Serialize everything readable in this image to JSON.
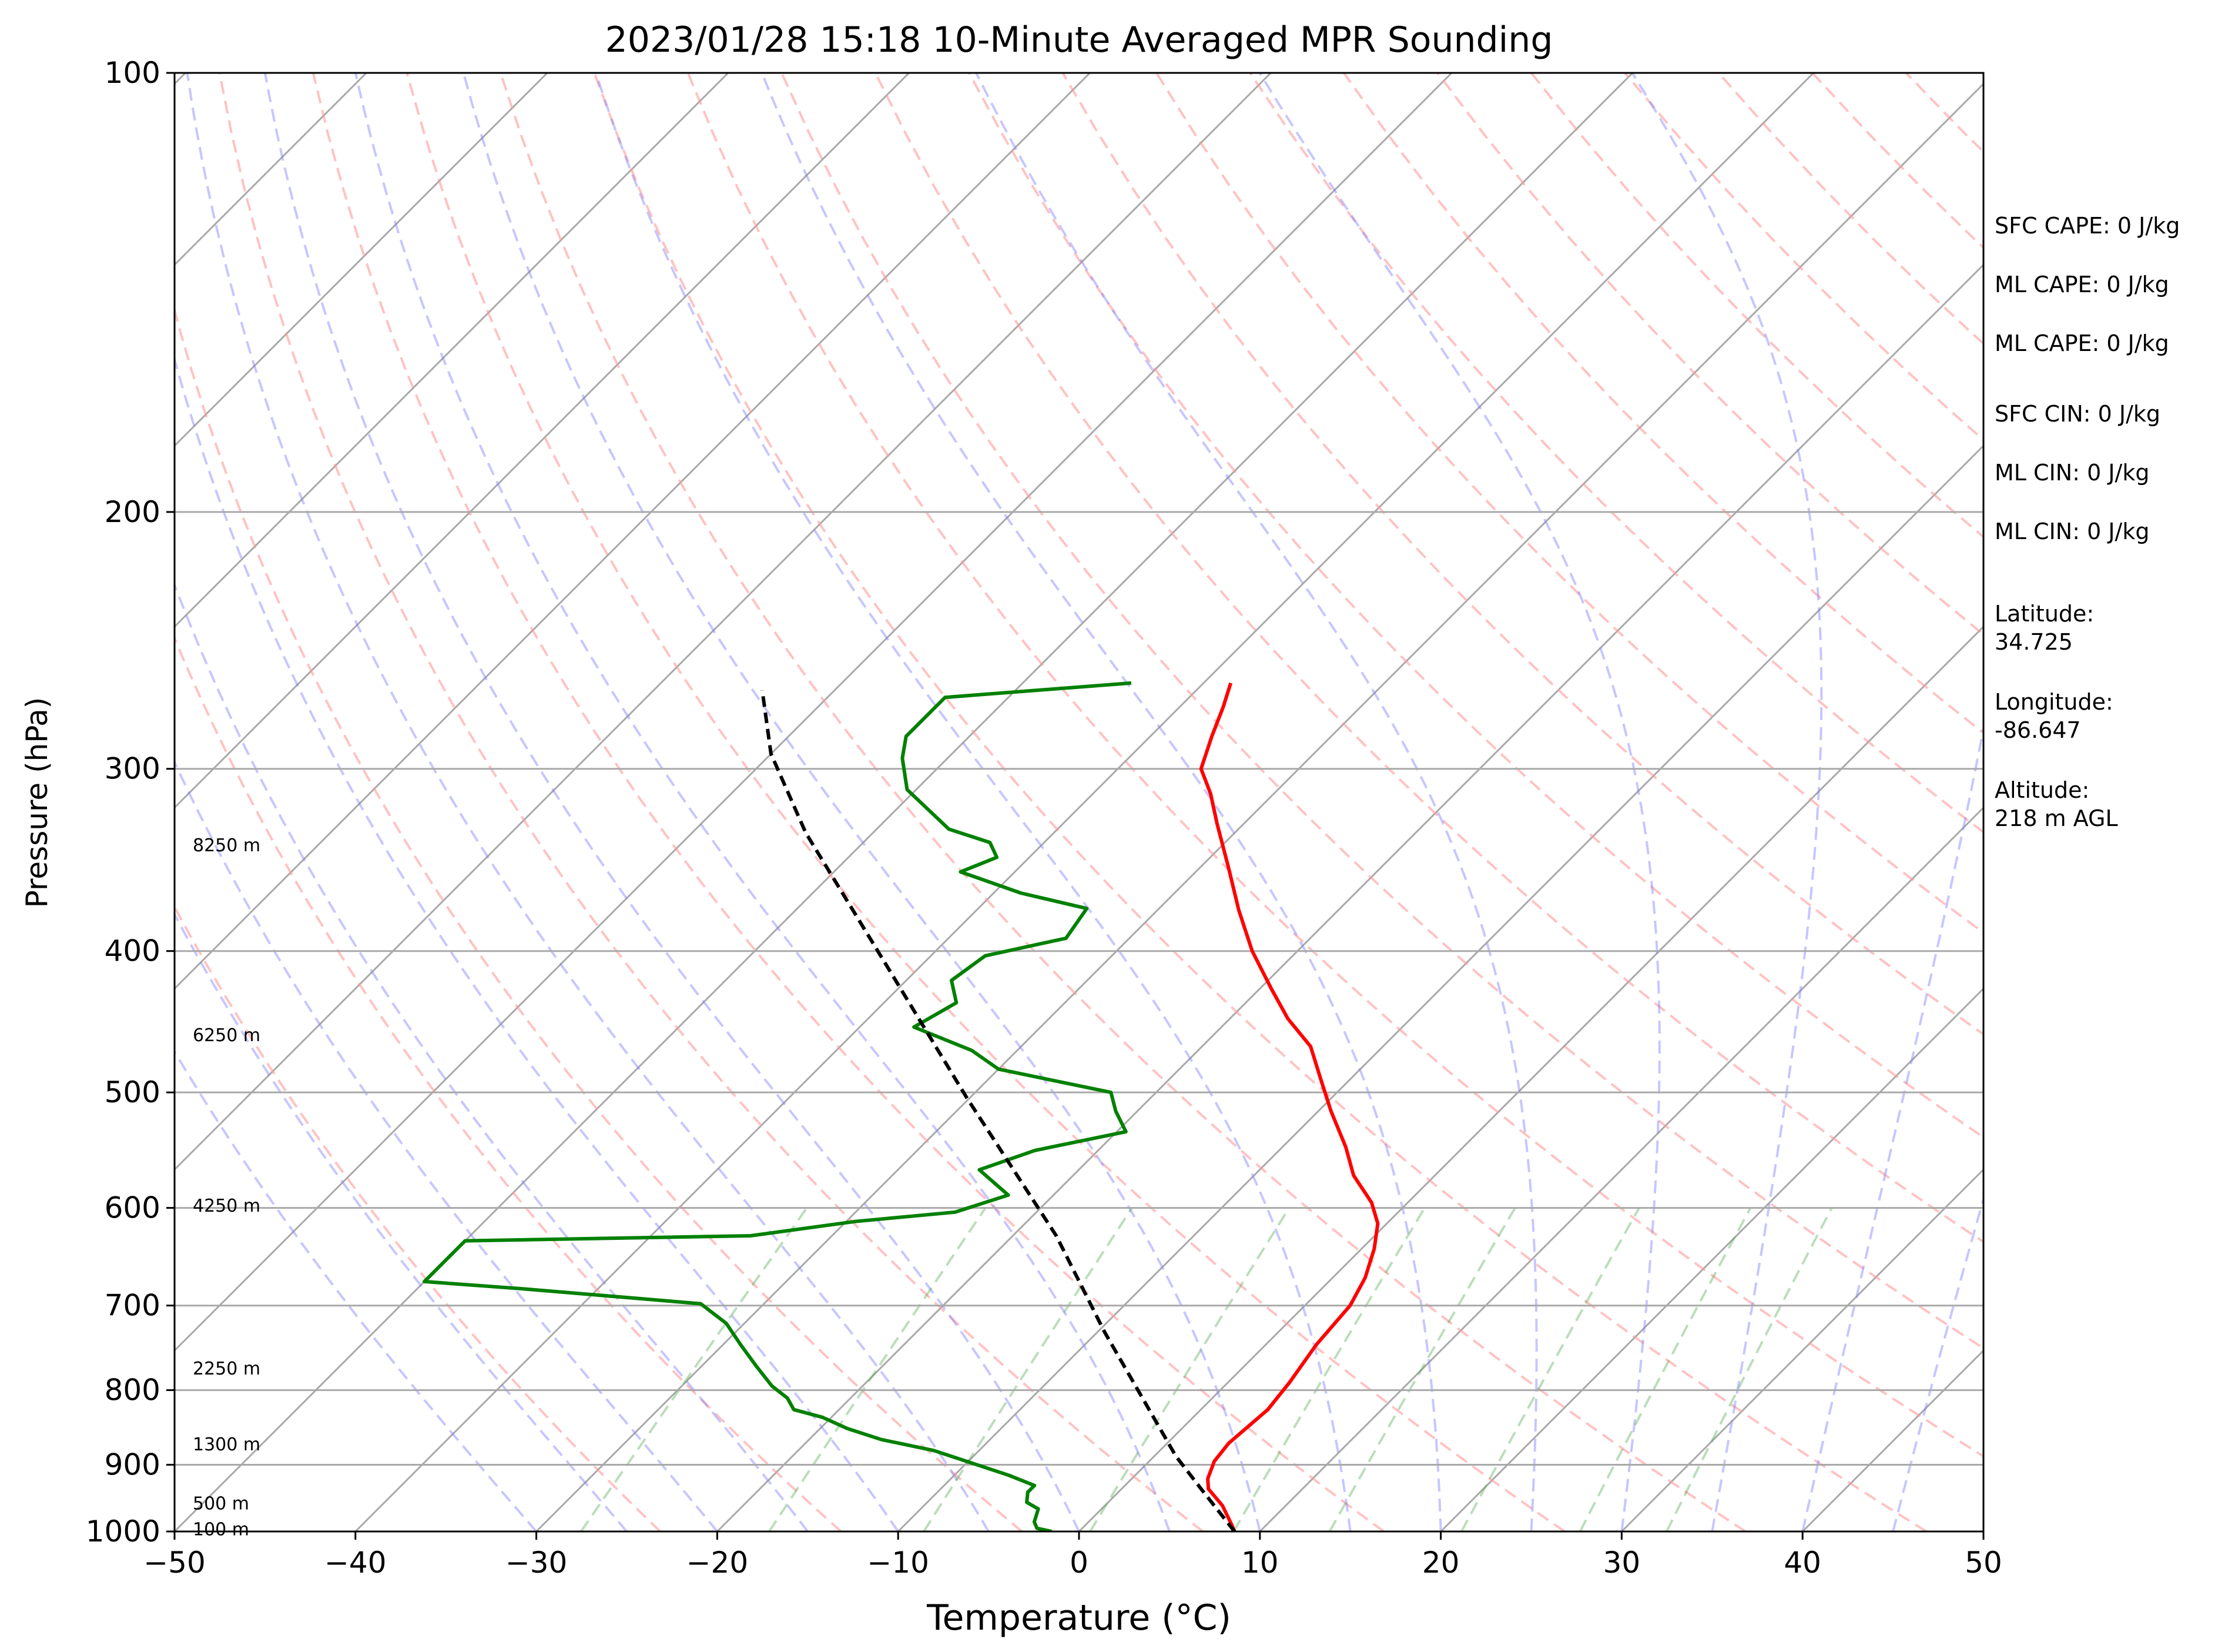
{
  "chart_data": {
    "type": "line",
    "subtype": "skew-t log-p sounding",
    "title": "2023/01/28 15:18 10-Minute Averaged MPR Sounding",
    "xlabel": "Temperature (°C)",
    "ylabel": "Pressure (hPa)",
    "xlim": [
      -50,
      50
    ],
    "ylim": [
      1000,
      100
    ],
    "y_scale": "log",
    "x_ticks": [
      "−50",
      "−40",
      "−30",
      "−20",
      "−10",
      "0",
      "10",
      "20",
      "30",
      "40",
      "50"
    ],
    "y_ticks": [
      "100",
      "200",
      "300",
      "400",
      "500",
      "600",
      "700",
      "800",
      "900",
      "1000"
    ],
    "grid": true,
    "height_labels": [
      "8250 m",
      "6250 m",
      "4250 m",
      "2250 m",
      "1300 m",
      "500 m",
      "100 m"
    ],
    "series": [
      {
        "role": "temperature",
        "color": "#ff0000",
        "points": [
          [
            8.6,
            1000
          ],
          [
            8.1,
            990
          ],
          [
            6.5,
            960
          ],
          [
            4.8,
            935
          ],
          [
            4.2,
            920
          ],
          [
            3.6,
            895
          ],
          [
            3.4,
            870
          ],
          [
            3.5,
            855
          ],
          [
            3.7,
            825
          ],
          [
            3.4,
            790
          ],
          [
            2.8,
            745
          ],
          [
            2.5,
            700
          ],
          [
            1.8,
            670
          ],
          [
            0.7,
            640
          ],
          [
            -0.5,
            615
          ],
          [
            -2.0,
            595
          ],
          [
            -4.5,
            570
          ],
          [
            -6.5,
            545
          ],
          [
            -9.3,
            515
          ],
          [
            -11.6,
            490
          ],
          [
            -14.0,
            465
          ],
          [
            -16.8,
            445
          ],
          [
            -19.3,
            425
          ],
          [
            -22.5,
            400
          ],
          [
            -25.5,
            375
          ],
          [
            -28.5,
            350
          ],
          [
            -31.5,
            327
          ],
          [
            -33.5,
            312
          ],
          [
            -35.4,
            300
          ],
          [
            -36.6,
            285
          ],
          [
            -37.6,
            272
          ],
          [
            -38.5,
            262
          ]
        ]
      },
      {
        "role": "dewpoint",
        "color": "#008000",
        "points": [
          [
            -1.5,
            1000
          ],
          [
            -2.5,
            995
          ],
          [
            -3.0,
            985
          ],
          [
            -3.5,
            965
          ],
          [
            -4.5,
            955
          ],
          [
            -5.0,
            940
          ],
          [
            -5.0,
            930
          ],
          [
            -7.0,
            915
          ],
          [
            -12.5,
            880
          ],
          [
            -16.0,
            865
          ],
          [
            -18.5,
            850
          ],
          [
            -20.5,
            835
          ],
          [
            -22.5,
            825
          ],
          [
            -23.5,
            810
          ],
          [
            -25.0,
            795
          ],
          [
            -27.0,
            770
          ],
          [
            -29.0,
            745
          ],
          [
            -31.0,
            720
          ],
          [
            -33.5,
            698
          ],
          [
            -44.0,
            682
          ],
          [
            -50,
            674
          ],
          [
            -50,
            632
          ],
          [
            -34.5,
            627
          ],
          [
            -29.5,
            613
          ],
          [
            -24.5,
            604
          ],
          [
            -22.5,
            588
          ],
          [
            -25.5,
            565
          ],
          [
            -23.5,
            548
          ],
          [
            -19.5,
            532
          ],
          [
            -21.2,
            515
          ],
          [
            -22.5,
            500
          ],
          [
            -30.0,
            482
          ],
          [
            -32.5,
            468
          ],
          [
            -37.0,
            451
          ],
          [
            -36.0,
            434
          ],
          [
            -37.5,
            419
          ],
          [
            -37.0,
            403
          ],
          [
            -33.5,
            392
          ],
          [
            -34.0,
            374
          ],
          [
            -38.5,
            365
          ],
          [
            -43.0,
            353
          ],
          [
            -41.8,
            345
          ],
          [
            -43.0,
            337
          ],
          [
            -46.0,
            330
          ],
          [
            -50.5,
            310
          ],
          [
            -52.5,
            295
          ],
          [
            -53.5,
            285
          ],
          [
            -53.5,
            268
          ],
          [
            -44.0,
            262
          ]
        ]
      },
      {
        "role": "parcel path",
        "color": "#000000",
        "style": "dashed",
        "points": [
          [
            8.6,
            1000
          ],
          [
            4.4,
            935
          ],
          [
            1.2,
            888
          ],
          [
            -9.6,
            730
          ],
          [
            -17.6,
            627
          ],
          [
            -30.2,
            504
          ],
          [
            -42.5,
            405
          ],
          [
            -53.7,
            332
          ],
          [
            -60.0,
            293
          ],
          [
            -64.0,
            265
          ]
        ]
      }
    ],
    "reference_lines": {
      "isotherms": "solid gray, skewed",
      "dry_adiabats": "dashed red",
      "moist_adiabats": "dashed blue",
      "mixing_ratio": "dashed green"
    }
  },
  "side_panel": {
    "sfc_cape": "SFC CAPE: 0 J/kg",
    "ml_cape_1": "ML CAPE: 0 J/kg",
    "ml_cape_2": "ML CAPE: 0 J/kg",
    "sfc_cin": "SFC CIN: 0 J/kg",
    "ml_cin_1": "ML CIN: 0 J/kg",
    "ml_cin_2": "ML CIN: 0 J/kg",
    "latitude": "Latitude:\n34.725",
    "longitude": "Longitude:\n-86.647",
    "altitude": "Altitude:\n218 m AGL"
  }
}
